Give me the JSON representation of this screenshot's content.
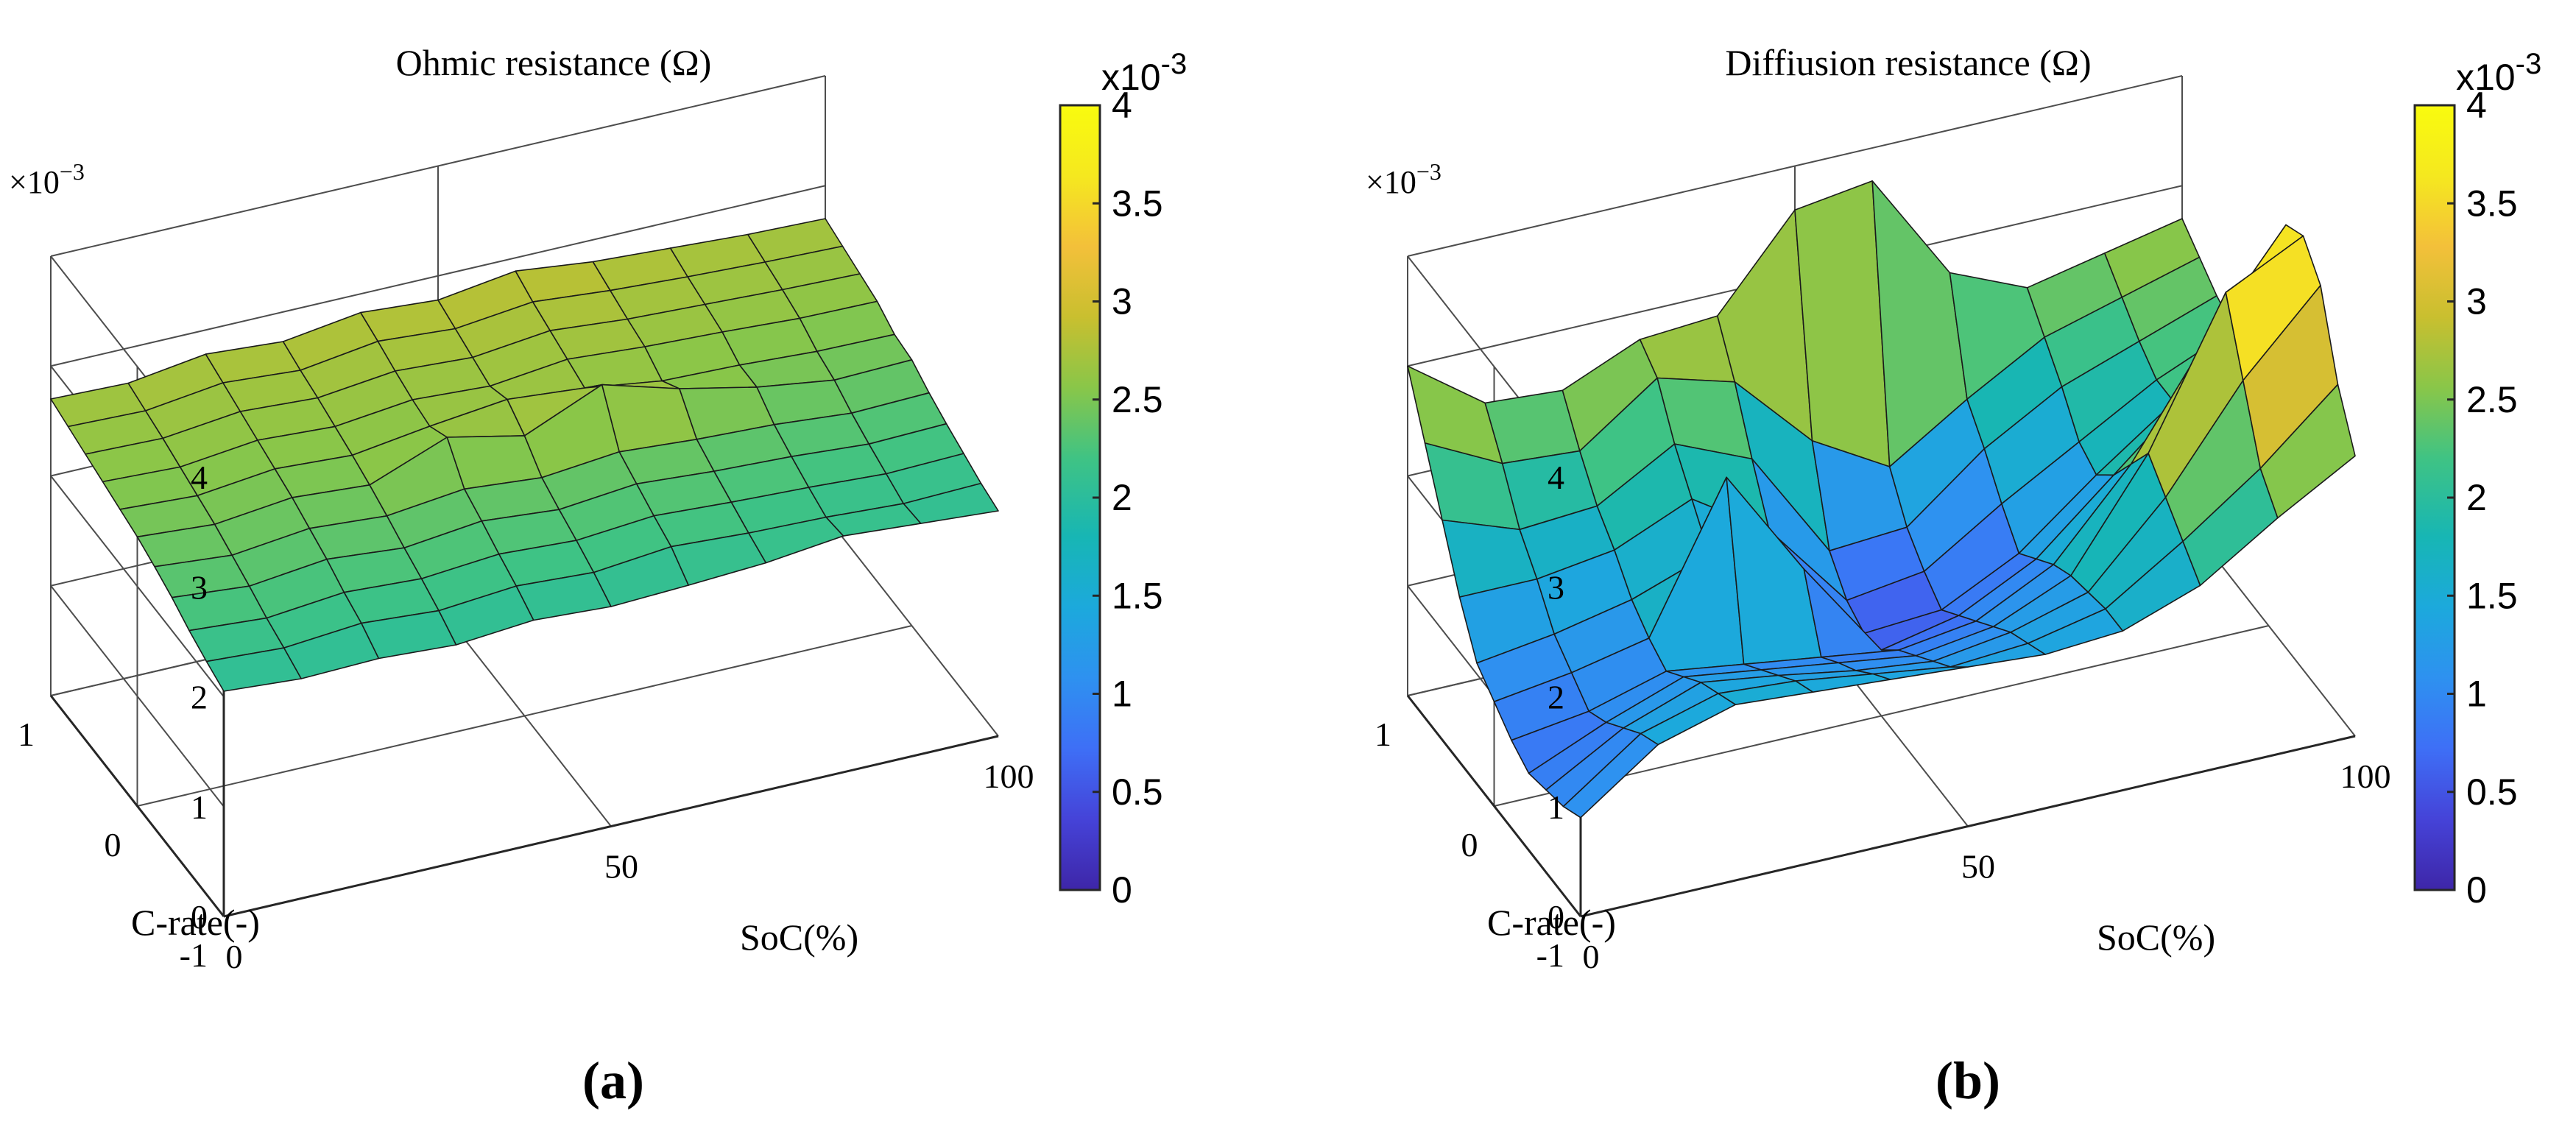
{
  "colormap": [
    "#3e26a8",
    "#4543d8",
    "#3e6ff6",
    "#2e91f0",
    "#1ca9dc",
    "#17b6b4",
    "#3fc384",
    "#89c649",
    "#c9bf2f",
    "#f3c03a",
    "#f5e81f",
    "#f9fb0e"
  ],
  "chart_data": [
    {
      "type": "surface",
      "title": "Ohmic resistance (Ω)",
      "xlabel": "SoC(%)",
      "ylabel": "C-rate(-)",
      "x_ticks": [
        "0",
        "50",
        "100"
      ],
      "y_ticks": [
        "-1",
        "0",
        "1"
      ],
      "z_ticks": [
        "0",
        "1",
        "2",
        "3",
        "4"
      ],
      "z_exponent_base": "×10",
      "z_exponent_power": "−3",
      "xlim": [
        0,
        100
      ],
      "ylim": [
        -1,
        1
      ],
      "zlim": [
        0,
        0.004
      ],
      "grid": true,
      "colorbar": {
        "ticks": [
          "0",
          "0.5",
          "1",
          "1.5",
          "2",
          "2.5",
          "3",
          "3.5",
          "4"
        ],
        "exponent_base": "x10",
        "exponent_power": "-3",
        "range": [
          0,
          0.004
        ],
        "placement": "right"
      },
      "caption": "(a)",
      "x": [
        0,
        10,
        20,
        30,
        40,
        50,
        60,
        70,
        80,
        90,
        100
      ],
      "y": [
        -1,
        -0.8,
        -0.6,
        -0.4,
        -0.2,
        0,
        0.2,
        0.4,
        0.6,
        0.8,
        1
      ],
      "z": [
        [
          0.00205,
          0.002,
          0.00202,
          0.00198,
          0.00204,
          0.002,
          0.00203,
          0.00207,
          0.00215,
          0.0021,
          0.00205
        ],
        [
          0.00212,
          0.00208,
          0.00214,
          0.00209,
          0.00215,
          0.00211,
          0.00218,
          0.00214,
          0.00212,
          0.00208,
          0.0021
        ],
        [
          0.0022,
          0.00215,
          0.00222,
          0.00218,
          0.00224,
          0.0022,
          0.00226,
          0.00222,
          0.00219,
          0.00215,
          0.00217
        ],
        [
          0.0023,
          0.00224,
          0.00232,
          0.00226,
          0.00234,
          0.00228,
          0.00235,
          0.0023,
          0.00227,
          0.00222,
          0.00224
        ],
        [
          0.00238,
          0.00232,
          0.0024,
          0.00235,
          0.00243,
          0.00237,
          0.00244,
          0.00239,
          0.00236,
          0.0023,
          0.00232
        ],
        [
          0.00245,
          0.0024,
          0.00248,
          0.00243,
          0.0027,
          0.00255,
          0.00285,
          0.00265,
          0.0025,
          0.0024,
          0.00242
        ],
        [
          0.0025,
          0.00246,
          0.00254,
          0.0025,
          0.0026,
          0.00268,
          0.00262,
          0.00252,
          0.0025,
          0.00246,
          0.00245
        ],
        [
          0.00255,
          0.00252,
          0.0026,
          0.00256,
          0.00264,
          0.0026,
          0.00268,
          0.00263,
          0.0026,
          0.00256,
          0.00255
        ],
        [
          0.0026,
          0.00258,
          0.00266,
          0.00262,
          0.0027,
          0.00266,
          0.00274,
          0.00268,
          0.00265,
          0.00262,
          0.0026
        ],
        [
          0.00265,
          0.00263,
          0.00272,
          0.00267,
          0.00277,
          0.00272,
          0.0028,
          0.00274,
          0.0027,
          0.00267,
          0.00265
        ],
        [
          0.0027,
          0.00268,
          0.00278,
          0.00273,
          0.00283,
          0.00278,
          0.00288,
          0.0028,
          0.00276,
          0.00272,
          0.0027
        ]
      ]
    },
    {
      "type": "surface",
      "title": "Diffiusion resistance (Ω)",
      "xlabel": "SoC(%)",
      "ylabel": "C-rate(-)",
      "x_ticks": [
        "0",
        "50",
        "100"
      ],
      "y_ticks": [
        "-1",
        "0",
        "1"
      ],
      "z_ticks": [
        "0",
        "1",
        "2",
        "3",
        "4"
      ],
      "z_exponent_base": "×10",
      "z_exponent_power": "−3",
      "xlim": [
        0,
        100
      ],
      "ylim": [
        -1,
        1
      ],
      "zlim": [
        0,
        0.004
      ],
      "grid": true,
      "colorbar": {
        "ticks": [
          "0",
          "0.5",
          "1",
          "1.5",
          "2",
          "2.5",
          "3",
          "3.5",
          "4"
        ],
        "exponent_base": "x10",
        "exponent_power": "-3",
        "range": [
          0,
          0.004
        ],
        "placement": "right"
      },
      "caption": "(b)",
      "x": [
        0,
        10,
        20,
        30,
        40,
        50,
        60,
        70,
        80,
        90,
        100
      ],
      "y": [
        -1,
        -0.8,
        -0.6,
        -0.4,
        -0.2,
        0,
        0.2,
        0.4,
        0.6,
        0.8,
        1
      ],
      "z": [
        [
          0.0009,
          0.0014,
          0.0016,
          0.00155,
          0.0015,
          0.00145,
          0.0014,
          0.00145,
          0.0017,
          0.00215,
          0.00255
        ],
        [
          0.0008,
          0.0013,
          0.0015,
          0.00145,
          0.00135,
          0.00125,
          0.0013,
          0.00145,
          0.0019,
          0.0024,
          0.003
        ],
        [
          0.00075,
          0.00115,
          0.0014,
          0.0013,
          0.00118,
          0.0011,
          0.0012,
          0.0014,
          0.0021,
          0.003,
          0.0037
        ],
        [
          0.0007,
          0.001,
          0.00125,
          0.00115,
          0.00105,
          0.00095,
          0.00105,
          0.00135,
          0.0023,
          0.0036,
          0.00395
        ],
        [
          0.0008,
          0.0009,
          0.0011,
          0.001,
          0.0009,
          0.0008,
          0.0009,
          0.00125,
          0.002,
          0.003,
          0.00385
        ],
        [
          0.00095,
          0.00105,
          0.0012,
          0.0025,
          0.0015,
          0.0006,
          0.00075,
          0.0011,
          0.0017,
          0.0023,
          0.0029
        ],
        [
          0.0011,
          0.0012,
          0.00135,
          0.0016,
          0.0011,
          0.00055,
          0.0006,
          0.00095,
          0.0015,
          0.002,
          0.0024
        ],
        [
          0.0015,
          0.0015,
          0.0016,
          0.0019,
          0.00145,
          0.00065,
          0.00075,
          0.0012,
          0.0016,
          0.002,
          0.0023
        ],
        [
          0.002,
          0.00175,
          0.0018,
          0.0022,
          0.0019,
          0.0009,
          0.00095,
          0.0015,
          0.0019,
          0.00215,
          0.0024
        ],
        [
          0.0025,
          0.00215,
          0.0021,
          0.0026,
          0.0024,
          0.0017,
          0.0013,
          0.00175,
          0.00215,
          0.00235,
          0.00255
        ],
        [
          0.003,
          0.0025,
          0.00245,
          0.00275,
          0.0028,
          0.0036,
          0.0037,
          0.0027,
          0.0024,
          0.00255,
          0.0027
        ]
      ]
    }
  ]
}
